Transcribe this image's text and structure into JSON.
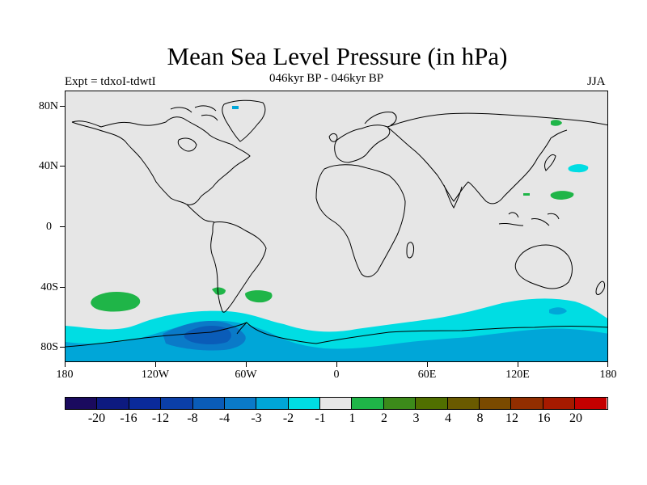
{
  "header": {
    "title": "Mean Sea Level Pressure (in hPa)",
    "left": "Expt = tdxoI-tdwtI",
    "center": "046kyr BP - 046kyr BP",
    "right": "JJA"
  },
  "axes": {
    "lat_ticks": [
      "80N",
      "40N",
      "0",
      "40S",
      "80S"
    ],
    "lon_ticks": [
      "180",
      "120W",
      "60W",
      "0",
      "60E",
      "120E",
      "180"
    ]
  },
  "colorbar": {
    "colors": [
      "#1a0a5e",
      "#0d1a80",
      "#0a2a9a",
      "#0b3fa8",
      "#0a5cb8",
      "#0a7ac8",
      "#00a6d8",
      "#00dde3",
      "#e6e6e6",
      "#1fb548",
      "#3c8a1a",
      "#506f00",
      "#6a5a00",
      "#7a4a00",
      "#922e00",
      "#a61a00",
      "#c40000"
    ],
    "labels": [
      "-20",
      "-16",
      "-12",
      "-8",
      "-4",
      "-3",
      "-2",
      "-1",
      "1",
      "2",
      "3",
      "4",
      "8",
      "12",
      "16",
      "20"
    ]
  },
  "legend_colors": {
    "neutral": "#e6e6e6",
    "light_cyan": "#00dde3",
    "mid_cyan": "#00a6d8",
    "blue": "#0a7ac8",
    "dark_blue": "#0a5cb8",
    "green": "#1fb548"
  }
}
